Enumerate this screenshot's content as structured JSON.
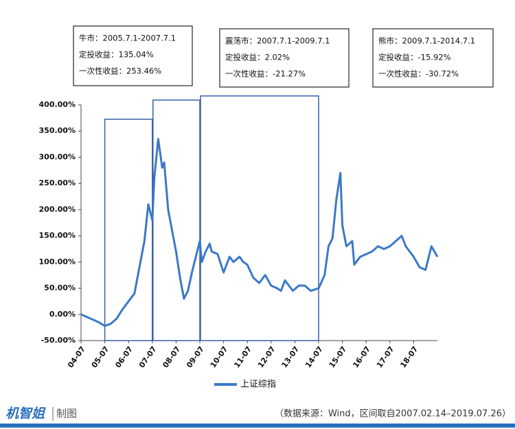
{
  "chart_data": {
    "type": "line",
    "annotations": [
      [
        "牛市：2005.7.1-2007.7.1",
        "定投收益：135.04%",
        "一次性收益：253.46%"
      ],
      [
        "震荡市：2007.7.1-2009.7.1",
        "定投收益：2.02%",
        "一次性收益：-21.27%"
      ],
      [
        "熊市：2009.7.1-2014.7.1",
        "定投收益：-15.92%",
        "一次性收益：-30.72%"
      ]
    ],
    "x": [
      "04-07",
      "04-10",
      "05-01",
      "05-04",
      "05-07",
      "05-10",
      "06-01",
      "06-04",
      "06-07",
      "06-10",
      "07-01",
      "07-03",
      "07-05",
      "07-07",
      "07-08",
      "07-10",
      "07-12",
      "08-01",
      "08-03",
      "08-05",
      "08-07",
      "08-09",
      "08-11",
      "09-01",
      "09-03",
      "09-05",
      "09-07",
      "09-08",
      "09-10",
      "09-12",
      "10-01",
      "10-04",
      "10-07",
      "10-10",
      "10-12",
      "11-03",
      "11-05",
      "11-07",
      "11-10",
      "12-01",
      "12-04",
      "12-07",
      "12-10",
      "12-12",
      "13-02",
      "13-06",
      "13-09",
      "13-12",
      "14-03",
      "14-07",
      "14-10",
      "14-12",
      "15-02",
      "15-04",
      "15-06",
      "15-07",
      "15-09",
      "15-12",
      "16-01",
      "16-04",
      "16-07",
      "16-10",
      "17-01",
      "17-04",
      "17-07",
      "17-10",
      "18-01",
      "18-03",
      "18-07",
      "18-10",
      "19-01",
      "19-04",
      "19-07"
    ],
    "series": [
      {
        "name": "上证综指",
        "color": "#3a78c9",
        "values": [
          0,
          -5,
          -10,
          -15,
          -22,
          -18,
          -8,
          10,
          25,
          40,
          100,
          140,
          210,
          180,
          260,
          335,
          280,
          290,
          200,
          160,
          120,
          70,
          30,
          45,
          80,
          110,
          140,
          100,
          120,
          135,
          120,
          115,
          80,
          110,
          100,
          110,
          100,
          95,
          70,
          60,
          75,
          55,
          50,
          45,
          65,
          45,
          55,
          55,
          45,
          50,
          75,
          130,
          145,
          220,
          270,
          170,
          130,
          140,
          95,
          110,
          115,
          120,
          130,
          125,
          130,
          140,
          150,
          130,
          110,
          90,
          85,
          130,
          110
        ]
      }
    ],
    "xlim": [
      "04-07",
      "19-07"
    ],
    "xticks": [
      "04-07",
      "05-07",
      "06-07",
      "07-07",
      "08-07",
      "09-07",
      "10-07",
      "11-07",
      "12-07",
      "13-07",
      "14-07",
      "15-07",
      "16-07",
      "17-07",
      "18-07"
    ],
    "ylim": [
      -50,
      400
    ],
    "yticks": [
      {
        "value": -50,
        "label": "-50.00%"
      },
      {
        "value": 0,
        "label": "0.00%"
      },
      {
        "value": 50,
        "label": "50.00%"
      },
      {
        "value": 100,
        "label": "100.00%"
      },
      {
        "value": 150,
        "label": "150.00%"
      },
      {
        "value": 200,
        "label": "200.00%"
      },
      {
        "value": 250,
        "label": "250.00%"
      },
      {
        "value": 300,
        "label": "300.00%"
      },
      {
        "value": 350,
        "label": "350.00%"
      },
      {
        "value": 400,
        "label": "400.00%"
      }
    ],
    "legend": "bottom"
  },
  "footer": {
    "brand": "机智姐",
    "suffix": "制图",
    "source": "（数据来源：Wind，区间取自2007.02.14–2019.07.26）"
  }
}
